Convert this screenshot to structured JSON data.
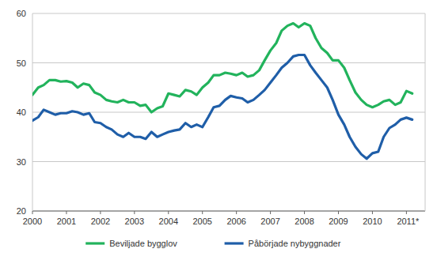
{
  "chart_data": {
    "type": "line",
    "x": [
      2000,
      2000.17,
      2000.33,
      2000.5,
      2000.67,
      2000.83,
      2001,
      2001.17,
      2001.33,
      2001.5,
      2001.67,
      2001.83,
      2002,
      2002.17,
      2002.33,
      2002.5,
      2002.67,
      2002.83,
      2003,
      2003.17,
      2003.33,
      2003.5,
      2003.67,
      2003.83,
      2004,
      2004.17,
      2004.33,
      2004.5,
      2004.67,
      2004.83,
      2005,
      2005.17,
      2005.33,
      2005.5,
      2005.67,
      2005.83,
      2006,
      2006.17,
      2006.33,
      2006.5,
      2006.67,
      2006.83,
      2007,
      2007.17,
      2007.33,
      2007.5,
      2007.67,
      2007.83,
      2008,
      2008.17,
      2008.33,
      2008.5,
      2008.67,
      2008.83,
      2009,
      2009.17,
      2009.33,
      2009.5,
      2009.67,
      2009.83,
      2010,
      2010.17,
      2010.33,
      2010.5,
      2010.67,
      2010.83,
      2011,
      2011.17
    ],
    "series": [
      {
        "name": "Beviljade bygglov",
        "color": "#22b35c",
        "values": [
          43.5,
          45,
          45.5,
          46.5,
          46.5,
          46.2,
          46.3,
          46,
          45,
          45.8,
          45.5,
          44,
          43.5,
          42.5,
          42.2,
          42,
          42.5,
          42,
          42,
          41.3,
          41.5,
          40,
          40.8,
          41.2,
          43.8,
          43.5,
          43.2,
          44.5,
          44.2,
          43.5,
          45,
          46,
          47.5,
          47.5,
          48,
          47.8,
          47.5,
          48,
          47.2,
          47.5,
          48.5,
          50.5,
          52.5,
          54,
          56.5,
          57.5,
          58,
          57.2,
          58,
          57.5,
          55,
          53,
          52,
          50.5,
          50.5,
          49,
          46.5,
          44,
          42.5,
          41.5,
          41,
          41.5,
          42.2,
          42.5,
          41.5,
          42,
          44.3,
          43.8
        ]
      },
      {
        "name": "Påbörjade nybyggnader",
        "color": "#1f5ea8",
        "values": [
          38.3,
          39,
          40.5,
          40,
          39.5,
          39.8,
          39.8,
          40.2,
          40,
          39.5,
          39.8,
          38,
          37.8,
          37,
          36.5,
          35.5,
          35,
          35.8,
          35,
          35,
          34.6,
          36,
          35,
          35.5,
          36,
          36.3,
          36.5,
          37.8,
          37,
          37.5,
          37,
          39,
          41,
          41.3,
          42.5,
          43.3,
          43,
          42.8,
          42,
          42.5,
          43.5,
          44.5,
          46,
          47.5,
          49,
          50,
          51.3,
          51.6,
          51.6,
          49.5,
          48,
          46.5,
          45,
          42.5,
          39.5,
          37.5,
          35,
          33,
          31.5,
          30.6,
          31.7,
          32,
          35,
          36.8,
          37.5,
          38.5,
          38.9,
          38.5
        ]
      }
    ],
    "xlim": [
      2000,
      2011.55
    ],
    "xticks": [
      2000,
      2001,
      2002,
      2003,
      2004,
      2005,
      2006,
      2007,
      2008,
      2009,
      2010,
      {
        "value": 2011,
        "label": "2011*"
      }
    ],
    "ylim": [
      20,
      60
    ],
    "yticks": [
      20,
      30,
      40,
      50,
      60
    ],
    "grid": true,
    "legend": "bottom"
  }
}
